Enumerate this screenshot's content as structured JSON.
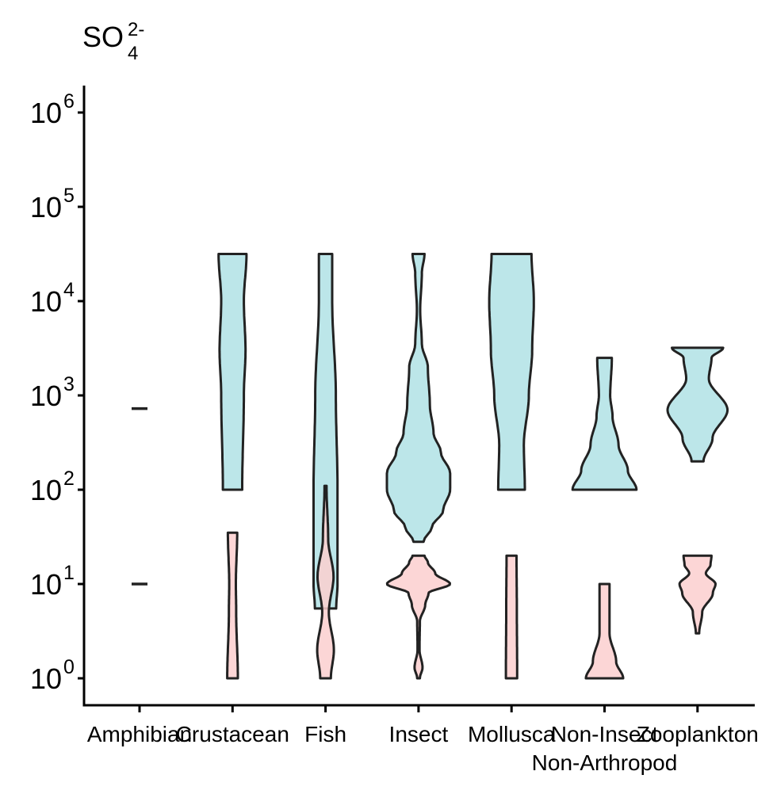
{
  "chart_data": {
    "type": "violin",
    "title": {
      "base": "SO",
      "subscript": "4",
      "superscript": "2-"
    },
    "yscale": "log10",
    "ylim": [
      0.75,
      2000000
    ],
    "yticks": [
      {
        "value": 1,
        "mant": "10",
        "exp": "0"
      },
      {
        "value": 10,
        "mant": "10",
        "exp": "1"
      },
      {
        "value": 100,
        "mant": "10",
        "exp": "2"
      },
      {
        "value": 1000,
        "mant": "10",
        "exp": "3"
      },
      {
        "value": 10000,
        "mant": "10",
        "exp": "4"
      },
      {
        "value": 100000,
        "mant": "10",
        "exp": "5"
      },
      {
        "value": 1000000,
        "mant": "10",
        "exp": "6"
      }
    ],
    "categories": [
      "Amphibian",
      "Crustacean",
      "Fish",
      "Insect",
      "Mollusca",
      "Non-Insect\nNon-Arthropod",
      "Zooplankton"
    ],
    "category_labels": [
      [
        "Amphibian"
      ],
      [
        "Crustacean"
      ],
      [
        "Fish"
      ],
      [
        "Insect"
      ],
      [
        "Mollusca"
      ],
      [
        "Non-Insect",
        "Non-Arthropod"
      ],
      [
        "Zooplankton"
      ]
    ],
    "colors": {
      "upper": "#bce6e9",
      "lower": "#fccfcf",
      "outline": "#222222"
    },
    "series": [
      {
        "group": "upper",
        "fill": "#bce6e9",
        "violins": [
          {
            "category": 0,
            "single_value": 725
          },
          {
            "category": 1,
            "profile": [
              [
                100,
                0.29
              ],
              [
                1000,
                0.34
              ],
              [
                3000,
                0.39
              ],
              [
                10000,
                0.34
              ],
              [
                31600,
                0.42
              ]
            ]
          },
          {
            "category": 2,
            "profile": [
              [
                5.5,
                0.32
              ],
              [
                10,
                0.36
              ],
              [
                100,
                0.36
              ],
              [
                1000,
                0.31
              ],
              [
                10000,
                0.2
              ],
              [
                31600,
                0.2
              ]
            ]
          },
          {
            "category": 3,
            "profile": [
              [
                28,
                0.15
              ],
              [
                40,
                0.4
              ],
              [
                60,
                0.74
              ],
              [
                100,
                0.95
              ],
              [
                150,
                0.95
              ],
              [
                250,
                0.67
              ],
              [
                400,
                0.45
              ],
              [
                800,
                0.34
              ],
              [
                2000,
                0.28
              ],
              [
                3500,
                0.1
              ],
              [
                8000,
                0.05
              ],
              [
                20000,
                0.1
              ],
              [
                31600,
                0.18
              ]
            ]
          },
          {
            "category": 4,
            "profile": [
              [
                100,
                0.4
              ],
              [
                300,
                0.37
              ],
              [
                1000,
                0.52
              ],
              [
                3000,
                0.62
              ],
              [
                10000,
                0.67
              ],
              [
                31600,
                0.6
              ]
            ]
          },
          {
            "category": 5,
            "profile": [
              [
                100,
                0.96
              ],
              [
                160,
                0.7
              ],
              [
                300,
                0.42
              ],
              [
                600,
                0.24
              ],
              [
                1000,
                0.17
              ],
              [
                2500,
                0.22
              ]
            ]
          },
          {
            "category": 6,
            "profile": [
              [
                200,
                0.18
              ],
              [
                350,
                0.45
              ],
              [
                700,
                0.9
              ],
              [
                1500,
                0.34
              ],
              [
                2500,
                0.42
              ],
              [
                3200,
                0.77
              ]
            ]
          }
        ]
      },
      {
        "group": "lower",
        "fill": "#fccfcf",
        "violins": [
          {
            "category": 0,
            "single_value": 10
          },
          {
            "category": 1,
            "profile": [
              [
                1,
                0.16
              ],
              [
                5,
                0.11
              ],
              [
                10,
                0.1
              ],
              [
                35,
                0.14
              ]
            ]
          },
          {
            "category": 2,
            "profile": [
              [
                1,
                0.16
              ],
              [
                2,
                0.25
              ],
              [
                5,
                0.1
              ],
              [
                12,
                0.24
              ],
              [
                30,
                0.08
              ],
              [
                110,
                0.03
              ]
            ]
          },
          {
            "category": 3,
            "profile": [
              [
                1,
                0.04
              ],
              [
                1.3,
                0.12
              ],
              [
                2,
                0.03
              ],
              [
                4,
                0.04
              ],
              [
                6,
                0.2
              ],
              [
                8,
                0.3
              ],
              [
                10,
                0.95
              ],
              [
                13,
                0.5
              ],
              [
                17,
                0.28
              ],
              [
                20,
                0.18
              ]
            ]
          },
          {
            "category": 4,
            "profile": [
              [
                1,
                0.17
              ],
              [
                5,
                0.16
              ],
              [
                20,
                0.15
              ]
            ]
          },
          {
            "category": 5,
            "profile": [
              [
                1,
                0.56
              ],
              [
                1.5,
                0.35
              ],
              [
                3,
                0.15
              ],
              [
                10,
                0.15
              ]
            ]
          },
          {
            "category": 6,
            "profile": [
              [
                3,
                0.05
              ],
              [
                5,
                0.14
              ],
              [
                8,
                0.46
              ],
              [
                10,
                0.54
              ],
              [
                13,
                0.25
              ],
              [
                16,
                0.39
              ],
              [
                20,
                0.42
              ]
            ]
          }
        ]
      }
    ]
  }
}
